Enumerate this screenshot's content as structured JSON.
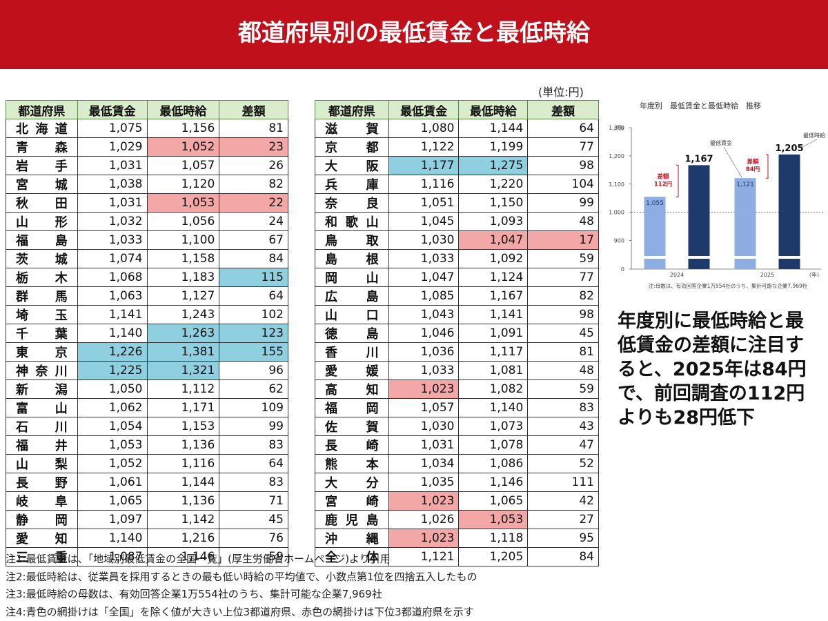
{
  "header": {
    "title": "都道府県別の最低賃金と最低時給"
  },
  "unit": "(単位:円)",
  "tables": [
    {
      "columns": [
        "都道府県",
        "最低賃金",
        "最低時給",
        "差額"
      ],
      "rows": [
        {
          "cells": [
            "北海道",
            "1,075",
            "1,156",
            "81"
          ],
          "shade": [
            null,
            null,
            null,
            null
          ]
        },
        {
          "cells": [
            "青森",
            "1,029",
            "1,052",
            "23"
          ],
          "shade": [
            null,
            null,
            "#f4a7a7",
            "#f4a7a7"
          ]
        },
        {
          "cells": [
            "岩手",
            "1,031",
            "1,057",
            "26"
          ],
          "shade": [
            null,
            null,
            null,
            null
          ]
        },
        {
          "cells": [
            "宮城",
            "1,038",
            "1,120",
            "82"
          ],
          "shade": [
            null,
            null,
            null,
            null
          ]
        },
        {
          "cells": [
            "秋田",
            "1,031",
            "1,053",
            "22"
          ],
          "shade": [
            null,
            null,
            "#f4a7a7",
            "#f4a7a7"
          ]
        },
        {
          "cells": [
            "山形",
            "1,032",
            "1,056",
            "24"
          ],
          "shade": [
            null,
            null,
            null,
            null
          ]
        },
        {
          "cells": [
            "福島",
            "1,033",
            "1,100",
            "67"
          ],
          "shade": [
            null,
            null,
            null,
            null
          ]
        },
        {
          "cells": [
            "茨城",
            "1,074",
            "1,158",
            "84"
          ],
          "shade": [
            null,
            null,
            null,
            null
          ]
        },
        {
          "cells": [
            "栃木",
            "1,068",
            "1,183",
            "115"
          ],
          "shade": [
            null,
            null,
            null,
            "#8fd0e0"
          ]
        },
        {
          "cells": [
            "群馬",
            "1,063",
            "1,127",
            "64"
          ],
          "shade": [
            null,
            null,
            null,
            null
          ]
        },
        {
          "cells": [
            "埼玉",
            "1,141",
            "1,243",
            "102"
          ],
          "shade": [
            null,
            null,
            null,
            null
          ]
        },
        {
          "cells": [
            "千葉",
            "1,140",
            "1,263",
            "123"
          ],
          "shade": [
            null,
            null,
            "#8fd0e0",
            "#8fd0e0"
          ]
        },
        {
          "cells": [
            "東京",
            "1,226",
            "1,381",
            "155"
          ],
          "shade": [
            null,
            "#8fd0e0",
            "#8fd0e0",
            "#8fd0e0"
          ]
        },
        {
          "cells": [
            "神奈川",
            "1,225",
            "1,321",
            "96"
          ],
          "shade": [
            null,
            "#8fd0e0",
            "#8fd0e0",
            null
          ]
        },
        {
          "cells": [
            "新潟",
            "1,050",
            "1,112",
            "62"
          ],
          "shade": [
            null,
            null,
            null,
            null
          ]
        },
        {
          "cells": [
            "富山",
            "1,062",
            "1,171",
            "109"
          ],
          "shade": [
            null,
            null,
            null,
            null
          ]
        },
        {
          "cells": [
            "石川",
            "1,054",
            "1,153",
            "99"
          ],
          "shade": [
            null,
            null,
            null,
            null
          ]
        },
        {
          "cells": [
            "福井",
            "1,053",
            "1,136",
            "83"
          ],
          "shade": [
            null,
            null,
            null,
            null
          ]
        },
        {
          "cells": [
            "山梨",
            "1,052",
            "1,116",
            "64"
          ],
          "shade": [
            null,
            null,
            null,
            null
          ]
        },
        {
          "cells": [
            "長野",
            "1,061",
            "1,144",
            "83"
          ],
          "shade": [
            null,
            null,
            null,
            null
          ]
        },
        {
          "cells": [
            "岐阜",
            "1,065",
            "1,136",
            "71"
          ],
          "shade": [
            null,
            null,
            null,
            null
          ]
        },
        {
          "cells": [
            "静岡",
            "1,097",
            "1,142",
            "45"
          ],
          "shade": [
            null,
            null,
            null,
            null
          ]
        },
        {
          "cells": [
            "愛知",
            "1,140",
            "1,216",
            "76"
          ],
          "shade": [
            null,
            null,
            null,
            null
          ]
        },
        {
          "cells": [
            "三重",
            "1,087",
            "1,146",
            "59"
          ],
          "shade": [
            null,
            null,
            null,
            null
          ]
        }
      ]
    },
    {
      "columns": [
        "都道府県",
        "最低賃金",
        "最低時給",
        "差額"
      ],
      "rows": [
        {
          "cells": [
            "滋賀",
            "1,080",
            "1,144",
            "64"
          ],
          "shade": [
            null,
            null,
            null,
            null
          ]
        },
        {
          "cells": [
            "京都",
            "1,122",
            "1,199",
            "77"
          ],
          "shade": [
            null,
            null,
            null,
            null
          ]
        },
        {
          "cells": [
            "大阪",
            "1,177",
            "1,275",
            "98"
          ],
          "shade": [
            null,
            "#8fd0e0",
            "#8fd0e0",
            null
          ]
        },
        {
          "cells": [
            "兵庫",
            "1,116",
            "1,220",
            "104"
          ],
          "shade": [
            null,
            null,
            null,
            null
          ]
        },
        {
          "cells": [
            "奈良",
            "1,051",
            "1,150",
            "99"
          ],
          "shade": [
            null,
            null,
            null,
            null
          ]
        },
        {
          "cells": [
            "和歌山",
            "1,045",
            "1,093",
            "48"
          ],
          "shade": [
            null,
            null,
            null,
            null
          ]
        },
        {
          "cells": [
            "鳥取",
            "1,030",
            "1,047",
            "17"
          ],
          "shade": [
            null,
            null,
            "#f4a7a7",
            "#f4a7a7"
          ]
        },
        {
          "cells": [
            "島根",
            "1,033",
            "1,092",
            "59"
          ],
          "shade": [
            null,
            null,
            null,
            null
          ]
        },
        {
          "cells": [
            "岡山",
            "1,047",
            "1,124",
            "77"
          ],
          "shade": [
            null,
            null,
            null,
            null
          ]
        },
        {
          "cells": [
            "広島",
            "1,085",
            "1,167",
            "82"
          ],
          "shade": [
            null,
            null,
            null,
            null
          ]
        },
        {
          "cells": [
            "山口",
            "1,043",
            "1,141",
            "98"
          ],
          "shade": [
            null,
            null,
            null,
            null
          ]
        },
        {
          "cells": [
            "徳島",
            "1,046",
            "1,091",
            "45"
          ],
          "shade": [
            null,
            null,
            null,
            null
          ]
        },
        {
          "cells": [
            "香川",
            "1,036",
            "1,117",
            "81"
          ],
          "shade": [
            null,
            null,
            null,
            null
          ]
        },
        {
          "cells": [
            "愛媛",
            "1,033",
            "1,081",
            "48"
          ],
          "shade": [
            null,
            null,
            null,
            null
          ]
        },
        {
          "cells": [
            "高知",
            "1,023",
            "1,082",
            "59"
          ],
          "shade": [
            null,
            "#f4a7a7",
            null,
            null
          ]
        },
        {
          "cells": [
            "福岡",
            "1,057",
            "1,140",
            "83"
          ],
          "shade": [
            null,
            null,
            null,
            null
          ]
        },
        {
          "cells": [
            "佐賀",
            "1,030",
            "1,073",
            "43"
          ],
          "shade": [
            null,
            null,
            null,
            null
          ]
        },
        {
          "cells": [
            "長崎",
            "1,031",
            "1,078",
            "47"
          ],
          "shade": [
            null,
            null,
            null,
            null
          ]
        },
        {
          "cells": [
            "熊本",
            "1,034",
            "1,086",
            "52"
          ],
          "shade": [
            null,
            null,
            null,
            null
          ]
        },
        {
          "cells": [
            "大分",
            "1,035",
            "1,146",
            "111"
          ],
          "shade": [
            null,
            null,
            null,
            null
          ]
        },
        {
          "cells": [
            "宮崎",
            "1,023",
            "1,065",
            "42"
          ],
          "shade": [
            null,
            "#f4a7a7",
            null,
            null
          ]
        },
        {
          "cells": [
            "鹿児島",
            "1,026",
            "1,053",
            "27"
          ],
          "shade": [
            null,
            null,
            "#f4a7a7",
            null
          ]
        },
        {
          "cells": [
            "沖縄",
            "1,023",
            "1,118",
            "95"
          ],
          "shade": [
            null,
            "#f4a7a7",
            null,
            null
          ]
        },
        {
          "cells": [
            "全体",
            "1,121",
            "1,205",
            "84"
          ],
          "shade": [
            null,
            null,
            null,
            null
          ]
        }
      ]
    }
  ],
  "notes": [
    "注1:最低賃金は、「地域別最低賃金の全国一覧」(厚生労働省ホームページ)より引用",
    "注2:最低時給は、従業員を採用するときの最も低い時給の平均値で、小数点第1位を四捨五入したもの",
    "注3:最低時給の母数は、有効回答企業1万554社のうち、集計可能な企業7,969社",
    "注4:青色の網掛けは「全国」を除く値が大きい上位3都道府県、赤色の網掛けは下位3都道府県を示す"
  ],
  "chart_data": {
    "type": "bar",
    "title": "年度別　最低賃金と最低時給　推移",
    "y_unit": "(円)",
    "x_unit": "(年)",
    "categories": [
      "2024",
      "2025"
    ],
    "series": [
      {
        "name": "最低賃金",
        "color": "#8eaee3",
        "values": [
          1055,
          1121
        ],
        "value_labels": [
          "1,055",
          "1,121"
        ]
      },
      {
        "name": "最低時給",
        "color": "#1e3a6b",
        "values": [
          1167,
          1205
        ],
        "value_labels": [
          "1,167",
          "1,205"
        ]
      }
    ],
    "ylim": [
      850,
      1300
    ],
    "yticks": [
      0,
      900,
      {
        "value": 1000,
        "label": "1,000"
      },
      {
        "value": 1100,
        "label": "1,100"
      },
      {
        "value": 1200,
        "label": "1,200"
      },
      {
        "value": 1300,
        "label": "1,300"
      }
    ],
    "reference_line": 1000,
    "diff_labels": [
      [
        "差額",
        "112円"
      ],
      [
        "差額",
        "84円"
      ]
    ],
    "note": "注:母数は、有効回答企業1万554社のうち、集計可能な企業7,969社"
  },
  "callout": "年度別に最低時給と最低賃金の差額に注目すると、2025年は84円で、前回調査の112円よりも28円低下"
}
